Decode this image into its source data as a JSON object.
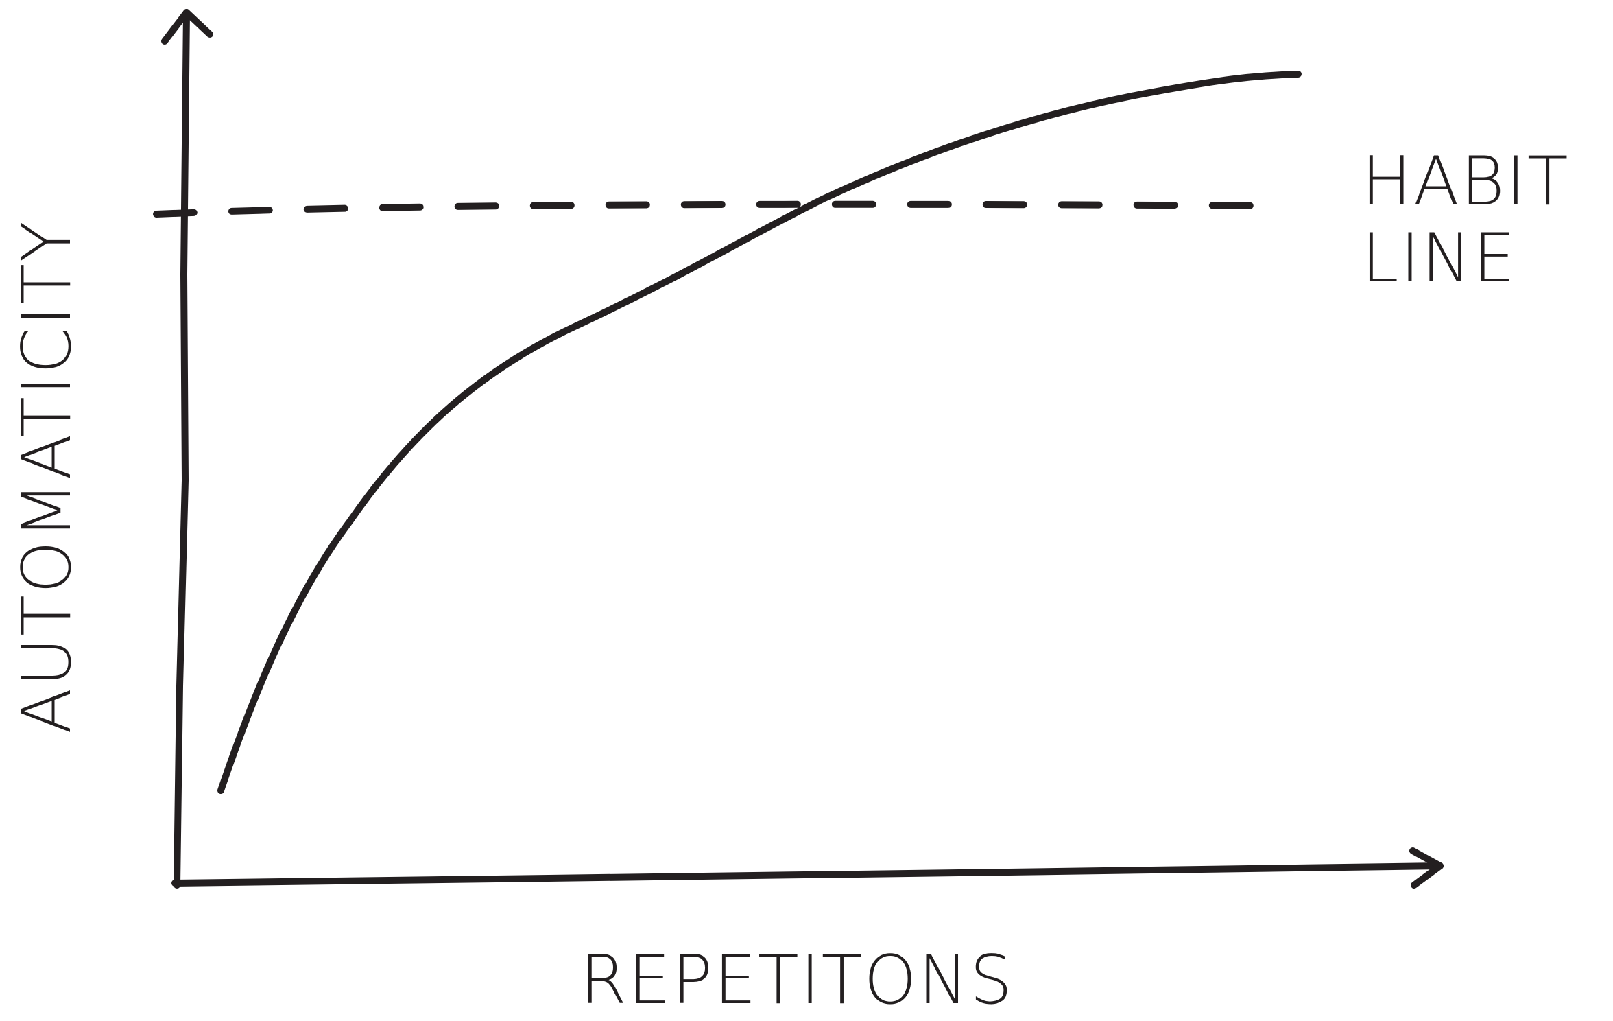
{
  "y_axis_label": "AUTOMATICITY",
  "x_axis_label": "REPETITONS",
  "annotation": {
    "lines": [
      "HABIT",
      "LINE"
    ]
  }
}
